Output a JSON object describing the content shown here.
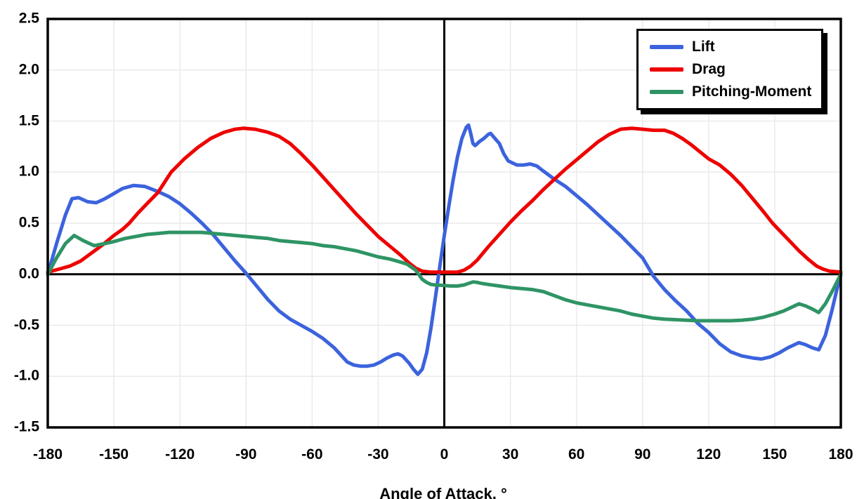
{
  "chart_data": {
    "type": "line",
    "title": "",
    "xlabel": "Angle of Attack, °",
    "ylabel": "",
    "xlim": [
      -180,
      180
    ],
    "ylim": [
      -1.5,
      2.5
    ],
    "xticks": [
      -180,
      -150,
      -120,
      -90,
      -60,
      -30,
      0,
      30,
      60,
      90,
      120,
      150,
      180
    ],
    "yticks": [
      -1.5,
      -1.0,
      -0.5,
      0.0,
      0.5,
      1.0,
      1.5,
      2.0,
      2.5
    ],
    "grid": true,
    "grid_color": "#eaeaea",
    "axis_color": "#000000",
    "background": "#ffffff",
    "legend_position": "top-right",
    "line_width": 5,
    "series": [
      {
        "name": "Lift",
        "color": "#3c63dd",
        "points": [
          [
            -180,
            0
          ],
          [
            -176,
            0.3
          ],
          [
            -172,
            0.58
          ],
          [
            -169,
            0.74
          ],
          [
            -166,
            0.75
          ],
          [
            -162,
            0.71
          ],
          [
            -158,
            0.7
          ],
          [
            -154,
            0.74
          ],
          [
            -150,
            0.79
          ],
          [
            -146,
            0.84
          ],
          [
            -141,
            0.87
          ],
          [
            -136,
            0.86
          ],
          [
            -130,
            0.81
          ],
          [
            -125,
            0.76
          ],
          [
            -120,
            0.69
          ],
          [
            -115,
            0.6
          ],
          [
            -110,
            0.5
          ],
          [
            -105,
            0.39
          ],
          [
            -100,
            0.26
          ],
          [
            -95,
            0.13
          ],
          [
            -90,
            0.01
          ],
          [
            -85,
            -0.12
          ],
          [
            -80,
            -0.25
          ],
          [
            -75,
            -0.36
          ],
          [
            -70,
            -0.44
          ],
          [
            -65,
            -0.5
          ],
          [
            -60,
            -0.56
          ],
          [
            -55,
            -0.63
          ],
          [
            -50,
            -0.72
          ],
          [
            -47,
            -0.79
          ],
          [
            -44,
            -0.86
          ],
          [
            -41,
            -0.89
          ],
          [
            -38,
            -0.9
          ],
          [
            -35,
            -0.9
          ],
          [
            -32,
            -0.89
          ],
          [
            -29,
            -0.86
          ],
          [
            -26,
            -0.82
          ],
          [
            -23,
            -0.79
          ],
          [
            -21,
            -0.78
          ],
          [
            -19,
            -0.8
          ],
          [
            -16,
            -0.87
          ],
          [
            -14,
            -0.93
          ],
          [
            -12,
            -0.98
          ],
          [
            -10,
            -0.93
          ],
          [
            -8,
            -0.77
          ],
          [
            -6,
            -0.52
          ],
          [
            -4,
            -0.22
          ],
          [
            -2,
            0.08
          ],
          [
            0,
            0.38
          ],
          [
            2,
            0.66
          ],
          [
            4,
            0.92
          ],
          [
            6,
            1.15
          ],
          [
            8,
            1.33
          ],
          [
            10,
            1.44
          ],
          [
            11,
            1.46
          ],
          [
            12,
            1.38
          ],
          [
            13,
            1.28
          ],
          [
            14,
            1.26
          ],
          [
            16,
            1.3
          ],
          [
            18,
            1.33
          ],
          [
            20,
            1.37
          ],
          [
            21,
            1.38
          ],
          [
            23,
            1.33
          ],
          [
            25,
            1.28
          ],
          [
            27,
            1.18
          ],
          [
            29,
            1.11
          ],
          [
            31,
            1.09
          ],
          [
            33,
            1.07
          ],
          [
            36,
            1.07
          ],
          [
            39,
            1.08
          ],
          [
            42,
            1.06
          ],
          [
            45,
            1.01
          ],
          [
            50,
            0.93
          ],
          [
            55,
            0.86
          ],
          [
            60,
            0.77
          ],
          [
            65,
            0.68
          ],
          [
            70,
            0.58
          ],
          [
            75,
            0.48
          ],
          [
            80,
            0.38
          ],
          [
            85,
            0.27
          ],
          [
            90,
            0.16
          ],
          [
            95,
            -0.02
          ],
          [
            100,
            -0.15
          ],
          [
            105,
            -0.26
          ],
          [
            110,
            -0.36
          ],
          [
            115,
            -0.48
          ],
          [
            120,
            -0.57
          ],
          [
            125,
            -0.68
          ],
          [
            130,
            -0.76
          ],
          [
            135,
            -0.8
          ],
          [
            140,
            -0.82
          ],
          [
            144,
            -0.83
          ],
          [
            148,
            -0.81
          ],
          [
            152,
            -0.77
          ],
          [
            156,
            -0.72
          ],
          [
            159,
            -0.69
          ],
          [
            161,
            -0.67
          ],
          [
            164,
            -0.69
          ],
          [
            167,
            -0.72
          ],
          [
            170,
            -0.74
          ],
          [
            173,
            -0.6
          ],
          [
            176,
            -0.35
          ],
          [
            178,
            -0.17
          ],
          [
            180,
            0
          ]
        ]
      },
      {
        "name": "Drag",
        "color": "#ee0000",
        "points": [
          [
            -180,
            0.02
          ],
          [
            -175,
            0.05
          ],
          [
            -170,
            0.08
          ],
          [
            -165,
            0.13
          ],
          [
            -160,
            0.21
          ],
          [
            -155,
            0.29
          ],
          [
            -150,
            0.38
          ],
          [
            -146,
            0.44
          ],
          [
            -143,
            0.5
          ],
          [
            -139,
            0.6
          ],
          [
            -135,
            0.69
          ],
          [
            -130,
            0.8
          ],
          [
            -124,
            1.0
          ],
          [
            -118,
            1.13
          ],
          [
            -112,
            1.24
          ],
          [
            -106,
            1.33
          ],
          [
            -100,
            1.39
          ],
          [
            -95,
            1.42
          ],
          [
            -91,
            1.43
          ],
          [
            -86,
            1.42
          ],
          [
            -80,
            1.39
          ],
          [
            -75,
            1.35
          ],
          [
            -70,
            1.28
          ],
          [
            -65,
            1.18
          ],
          [
            -60,
            1.07
          ],
          [
            -55,
            0.95
          ],
          [
            -50,
            0.83
          ],
          [
            -45,
            0.71
          ],
          [
            -40,
            0.59
          ],
          [
            -35,
            0.48
          ],
          [
            -30,
            0.37
          ],
          [
            -25,
            0.28
          ],
          [
            -20,
            0.19
          ],
          [
            -16,
            0.11
          ],
          [
            -13,
            0.06
          ],
          [
            -10,
            0.03
          ],
          [
            -6,
            0.02
          ],
          [
            0,
            0.02
          ],
          [
            6,
            0.02
          ],
          [
            9,
            0.04
          ],
          [
            12,
            0.08
          ],
          [
            15,
            0.14
          ],
          [
            20,
            0.27
          ],
          [
            25,
            0.39
          ],
          [
            30,
            0.51
          ],
          [
            35,
            0.62
          ],
          [
            40,
            0.72
          ],
          [
            45,
            0.83
          ],
          [
            50,
            0.93
          ],
          [
            55,
            1.03
          ],
          [
            60,
            1.12
          ],
          [
            65,
            1.21
          ],
          [
            70,
            1.3
          ],
          [
            75,
            1.37
          ],
          [
            80,
            1.42
          ],
          [
            85,
            1.43
          ],
          [
            90,
            1.42
          ],
          [
            95,
            1.41
          ],
          [
            100,
            1.41
          ],
          [
            104,
            1.38
          ],
          [
            108,
            1.33
          ],
          [
            112,
            1.27
          ],
          [
            116,
            1.2
          ],
          [
            120,
            1.13
          ],
          [
            125,
            1.07
          ],
          [
            130,
            0.98
          ],
          [
            135,
            0.87
          ],
          [
            140,
            0.74
          ],
          [
            145,
            0.61
          ],
          [
            149,
            0.5
          ],
          [
            153,
            0.41
          ],
          [
            157,
            0.32
          ],
          [
            161,
            0.23
          ],
          [
            165,
            0.15
          ],
          [
            169,
            0.08
          ],
          [
            172,
            0.05
          ],
          [
            175,
            0.03
          ],
          [
            180,
            0.02
          ]
        ]
      },
      {
        "name": "Pitching-Moment",
        "color": "#2f9465",
        "points": [
          [
            -180,
            0
          ],
          [
            -176,
            0.16
          ],
          [
            -172,
            0.3
          ],
          [
            -168,
            0.38
          ],
          [
            -164,
            0.33
          ],
          [
            -159,
            0.28
          ],
          [
            -154,
            0.3
          ],
          [
            -150,
            0.32
          ],
          [
            -145,
            0.35
          ],
          [
            -140,
            0.37
          ],
          [
            -135,
            0.39
          ],
          [
            -130,
            0.4
          ],
          [
            -125,
            0.41
          ],
          [
            -120,
            0.41
          ],
          [
            -115,
            0.41
          ],
          [
            -110,
            0.41
          ],
          [
            -105,
            0.4
          ],
          [
            -100,
            0.39
          ],
          [
            -95,
            0.38
          ],
          [
            -90,
            0.37
          ],
          [
            -85,
            0.36
          ],
          [
            -80,
            0.35
          ],
          [
            -75,
            0.33
          ],
          [
            -70,
            0.32
          ],
          [
            -65,
            0.31
          ],
          [
            -60,
            0.3
          ],
          [
            -55,
            0.28
          ],
          [
            -50,
            0.27
          ],
          [
            -45,
            0.25
          ],
          [
            -40,
            0.23
          ],
          [
            -35,
            0.2
          ],
          [
            -30,
            0.17
          ],
          [
            -25,
            0.15
          ],
          [
            -20,
            0.12
          ],
          [
            -17,
            0.1
          ],
          [
            -15,
            0.07
          ],
          [
            -13,
            0.04
          ],
          [
            -12,
            0.01
          ],
          [
            -10,
            -0.05
          ],
          [
            -8,
            -0.08
          ],
          [
            -6,
            -0.1
          ],
          [
            -4,
            -0.105
          ],
          [
            0,
            -0.11
          ],
          [
            3,
            -0.115
          ],
          [
            6,
            -0.115
          ],
          [
            9,
            -0.105
          ],
          [
            11,
            -0.09
          ],
          [
            13,
            -0.075
          ],
          [
            15,
            -0.08
          ],
          [
            17,
            -0.09
          ],
          [
            20,
            -0.1
          ],
          [
            25,
            -0.115
          ],
          [
            30,
            -0.13
          ],
          [
            35,
            -0.14
          ],
          [
            40,
            -0.15
          ],
          [
            45,
            -0.17
          ],
          [
            50,
            -0.21
          ],
          [
            55,
            -0.25
          ],
          [
            60,
            -0.28
          ],
          [
            65,
            -0.3
          ],
          [
            70,
            -0.32
          ],
          [
            75,
            -0.34
          ],
          [
            80,
            -0.36
          ],
          [
            85,
            -0.39
          ],
          [
            90,
            -0.41
          ],
          [
            95,
            -0.43
          ],
          [
            100,
            -0.44
          ],
          [
            105,
            -0.445
          ],
          [
            110,
            -0.45
          ],
          [
            115,
            -0.455
          ],
          [
            120,
            -0.455
          ],
          [
            125,
            -0.455
          ],
          [
            130,
            -0.455
          ],
          [
            135,
            -0.45
          ],
          [
            140,
            -0.44
          ],
          [
            145,
            -0.42
          ],
          [
            150,
            -0.39
          ],
          [
            154,
            -0.36
          ],
          [
            158,
            -0.32
          ],
          [
            161,
            -0.29
          ],
          [
            164,
            -0.31
          ],
          [
            167,
            -0.34
          ],
          [
            170,
            -0.375
          ],
          [
            173,
            -0.29
          ],
          [
            176,
            -0.17
          ],
          [
            180,
            0
          ]
        ]
      }
    ]
  }
}
